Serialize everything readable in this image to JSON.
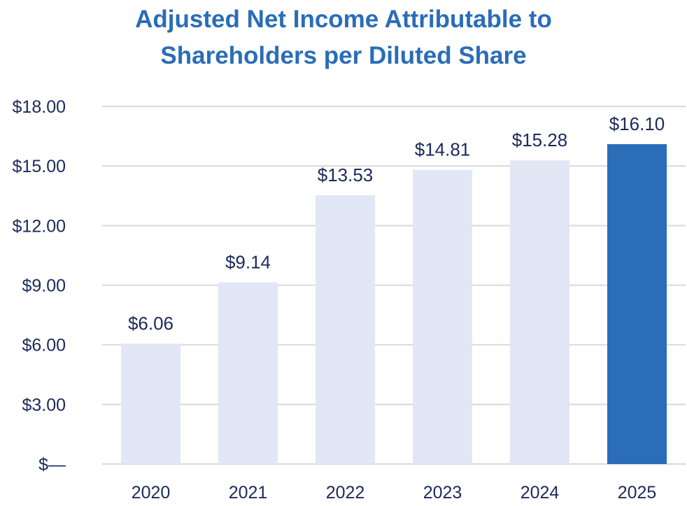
{
  "chart_data": {
    "type": "bar",
    "title_lines": [
      "Adjusted Net Income Attributable to",
      "Shareholders per Diluted Share"
    ],
    "categories": [
      "2020",
      "2021",
      "2022",
      "2023",
      "2024",
      "2025"
    ],
    "values": [
      6.06,
      9.14,
      13.53,
      14.81,
      15.28,
      16.1
    ],
    "value_labels": [
      "$6.06",
      "$9.14",
      "$13.53",
      "$14.81",
      "$15.28",
      "$16.10"
    ],
    "yticks": [
      0,
      3,
      6,
      9,
      12,
      15,
      18
    ],
    "ytick_labels": [
      "$—",
      "$3.00",
      "$6.00",
      "$9.00",
      "$12.00",
      "$15.00",
      "$18.00"
    ],
    "ylim": [
      0,
      18
    ],
    "grid": true,
    "legend": "none",
    "colors": {
      "bar_default": "#e1e7f4",
      "bar_highlight": "#2a6db8",
      "gridline": "#d9d9d9",
      "text": "#1b2a5c",
      "title": "#2a6db8"
    },
    "highlight_index": 5
  }
}
